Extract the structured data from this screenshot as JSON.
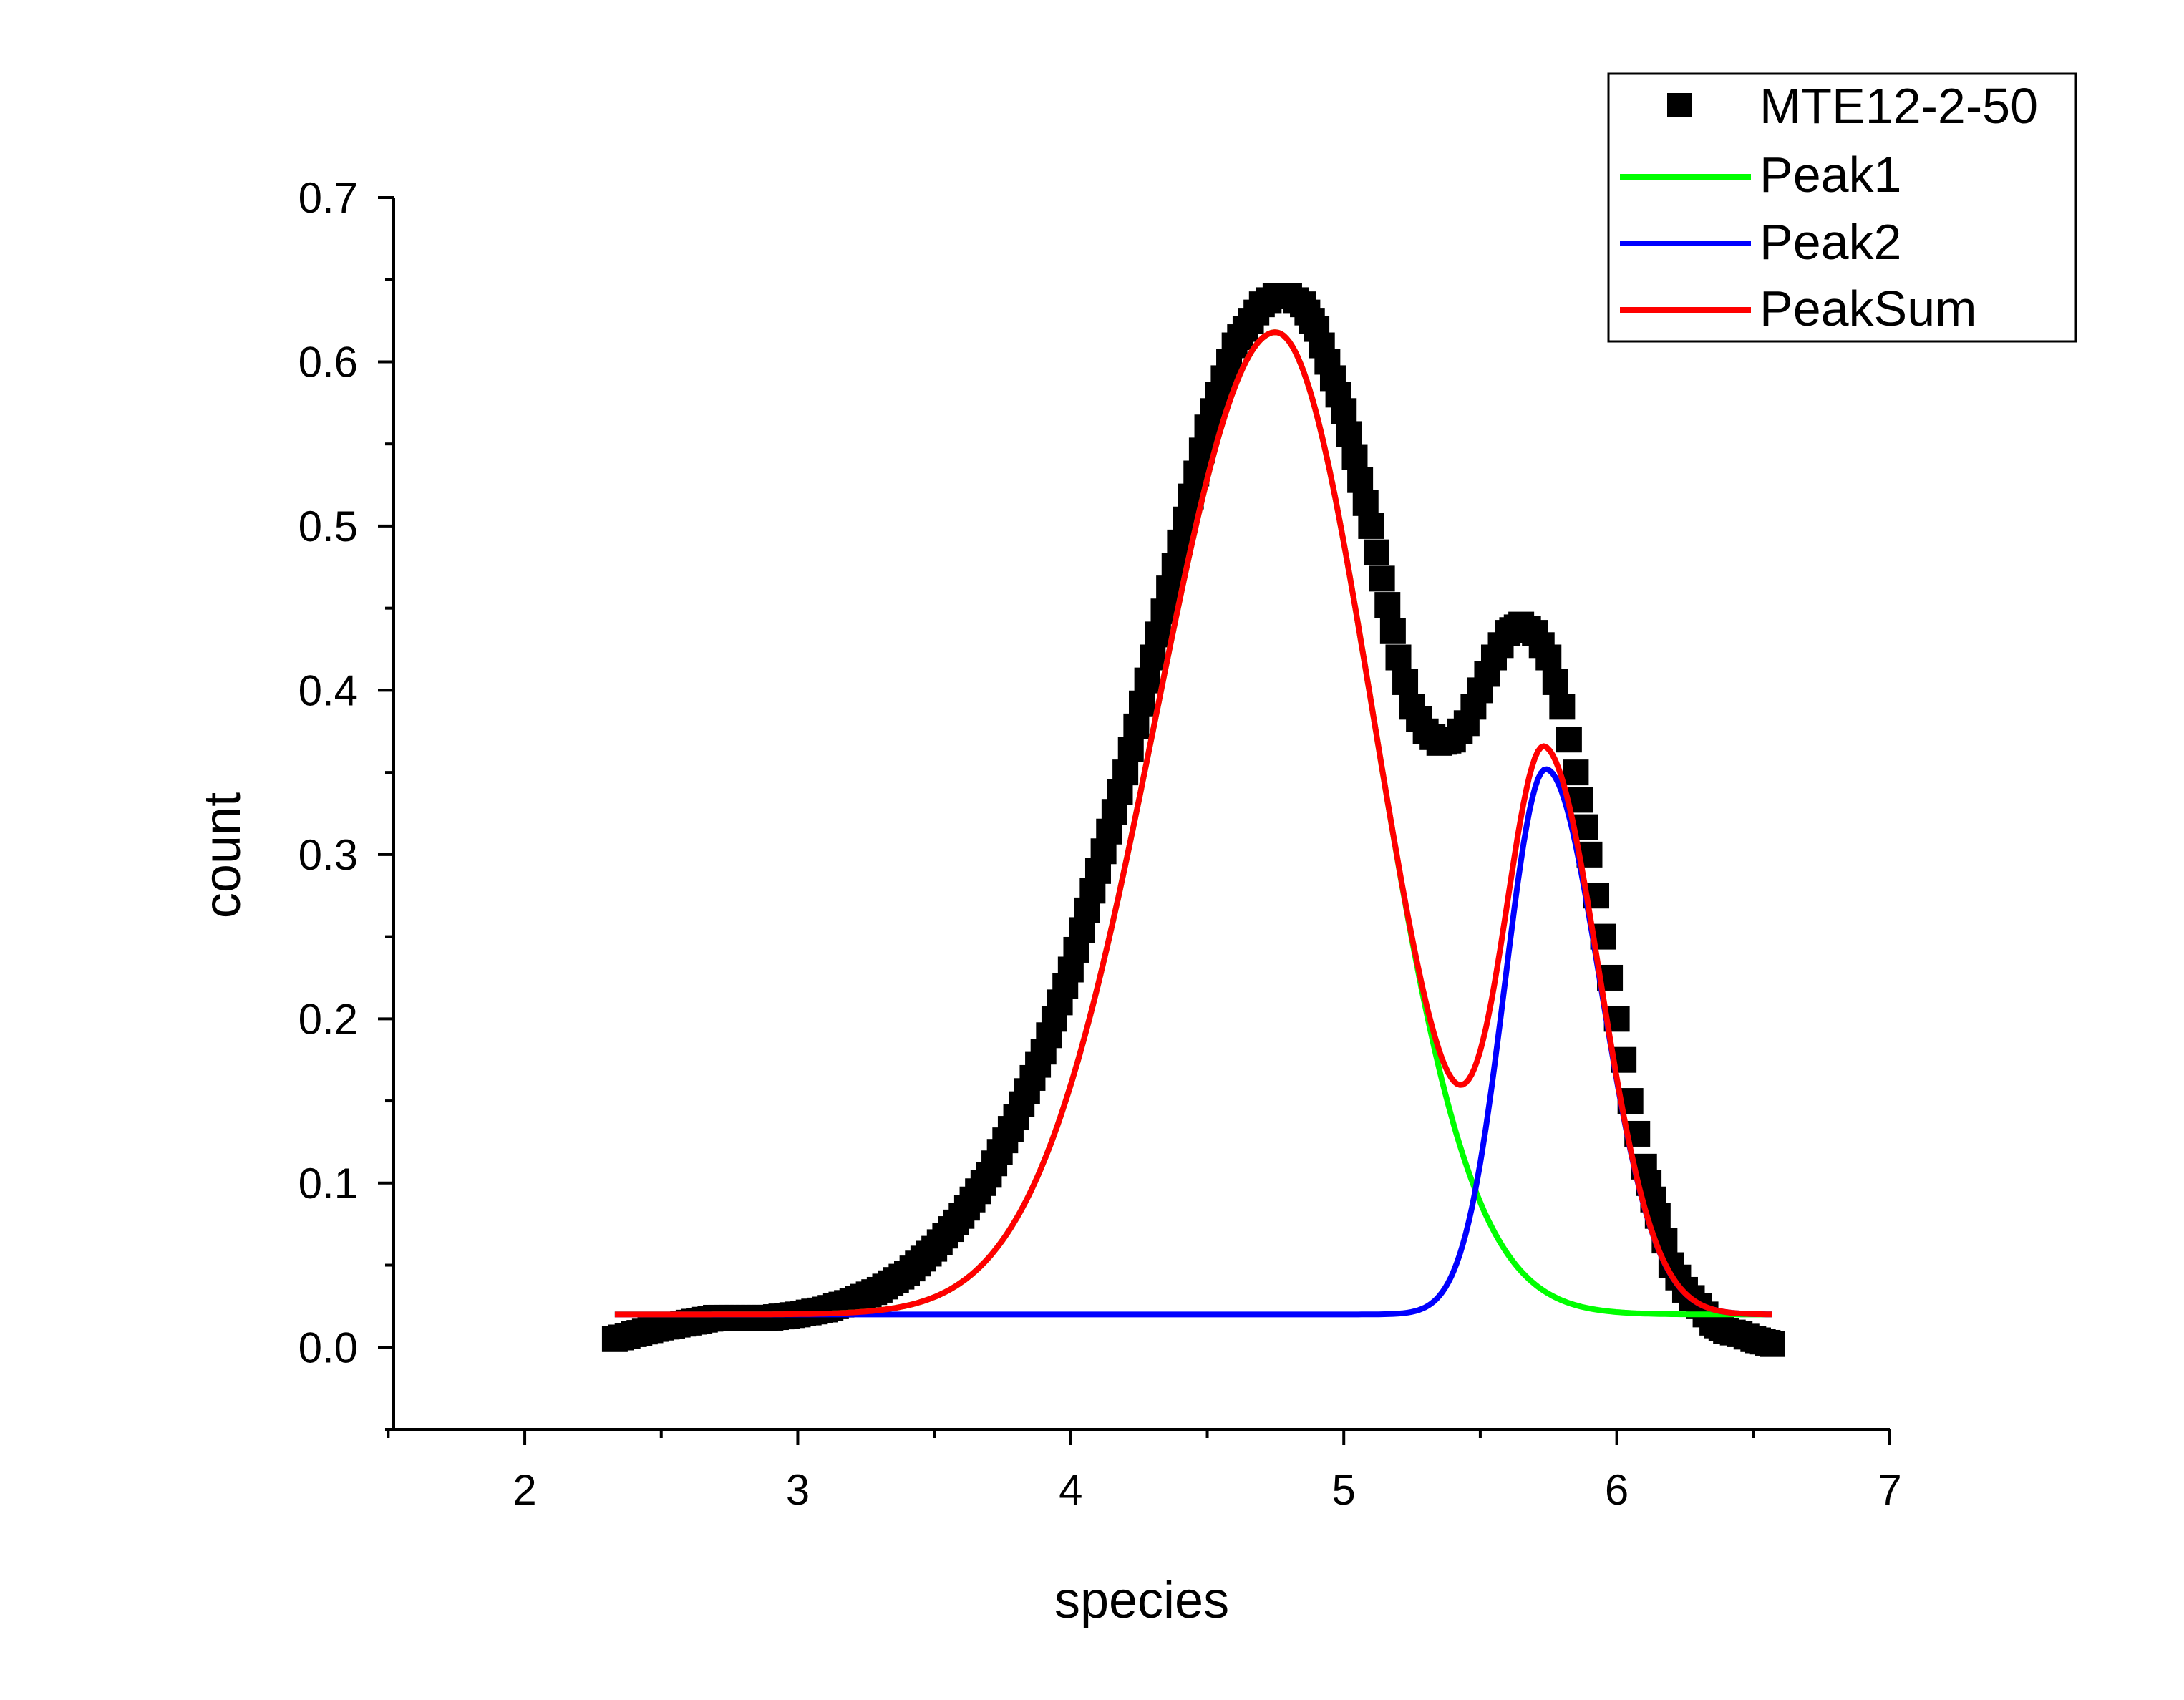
{
  "chart_data": {
    "type": "line",
    "xlabel": "species",
    "ylabel": "count",
    "xlim": [
      1.52,
      7.0
    ],
    "ylim": [
      -0.05,
      0.7
    ],
    "x_ticks": [
      2,
      3,
      4,
      5,
      6,
      7
    ],
    "x_tick_labels": [
      "2",
      "3",
      "4",
      "5",
      "6",
      "7"
    ],
    "y_ticks": [
      0.0,
      0.1,
      0.2,
      0.3,
      0.4,
      0.5,
      0.6,
      0.7
    ],
    "y_tick_labels": [
      "0.0",
      "0.1",
      "0.2",
      "0.3",
      "0.4",
      "0.5",
      "0.6",
      "0.7"
    ],
    "grid": false,
    "legend": "top-right",
    "series": [
      {
        "name": "MTE12-2-50",
        "kind": "scatter",
        "marker": "square",
        "color": "#000000",
        "x": [
          2.33,
          2.4,
          2.5,
          2.6,
          2.7,
          2.8,
          2.9,
          3.0,
          3.1,
          3.2,
          3.3,
          3.4,
          3.5,
          3.6,
          3.7,
          3.8,
          3.9,
          4.0,
          4.1,
          4.2,
          4.3,
          4.4,
          4.5,
          4.6,
          4.7,
          4.75,
          4.8,
          4.85,
          4.9,
          5.0,
          5.1,
          5.2,
          5.25,
          5.3,
          5.35,
          5.4,
          5.45,
          5.5,
          5.55,
          5.6,
          5.65,
          5.7,
          5.75,
          5.8,
          5.85,
          5.9,
          5.95,
          6.0,
          6.05,
          6.1,
          6.15,
          6.2,
          6.25,
          6.3,
          6.35,
          6.4,
          6.45,
          6.5,
          6.57
        ],
        "y": [
          0.005,
          0.008,
          0.012,
          0.015,
          0.018,
          0.018,
          0.018,
          0.02,
          0.023,
          0.028,
          0.035,
          0.045,
          0.06,
          0.08,
          0.105,
          0.14,
          0.18,
          0.23,
          0.29,
          0.35,
          0.42,
          0.49,
          0.56,
          0.61,
          0.635,
          0.64,
          0.64,
          0.635,
          0.62,
          0.57,
          0.5,
          0.42,
          0.39,
          0.375,
          0.368,
          0.37,
          0.38,
          0.4,
          0.42,
          0.435,
          0.44,
          0.435,
          0.42,
          0.39,
          0.35,
          0.3,
          0.25,
          0.2,
          0.15,
          0.11,
          0.08,
          0.05,
          0.035,
          0.025,
          0.015,
          0.01,
          0.008,
          0.005,
          0.002
        ]
      },
      {
        "name": "Peak1",
        "kind": "gaussian",
        "color": "#00ff00",
        "baseline": 0.02,
        "amplitude": 0.598,
        "center": 4.75,
        "sigma_left": 0.44,
        "sigma_right": 0.36,
        "x_range": [
          2.33,
          6.57
        ]
      },
      {
        "name": "Peak2",
        "kind": "gaussian",
        "color": "#0000ff",
        "baseline": 0.02,
        "amplitude": 0.332,
        "center": 5.74,
        "sigma_left": 0.15,
        "sigma_right": 0.2,
        "x_range": [
          2.33,
          6.57
        ]
      },
      {
        "name": "PeakSum",
        "kind": "sum",
        "components": [
          "Peak1",
          "Peak2"
        ],
        "color": "#ff0000",
        "baseline": 0.02,
        "x_range": [
          2.33,
          6.57
        ]
      }
    ]
  }
}
